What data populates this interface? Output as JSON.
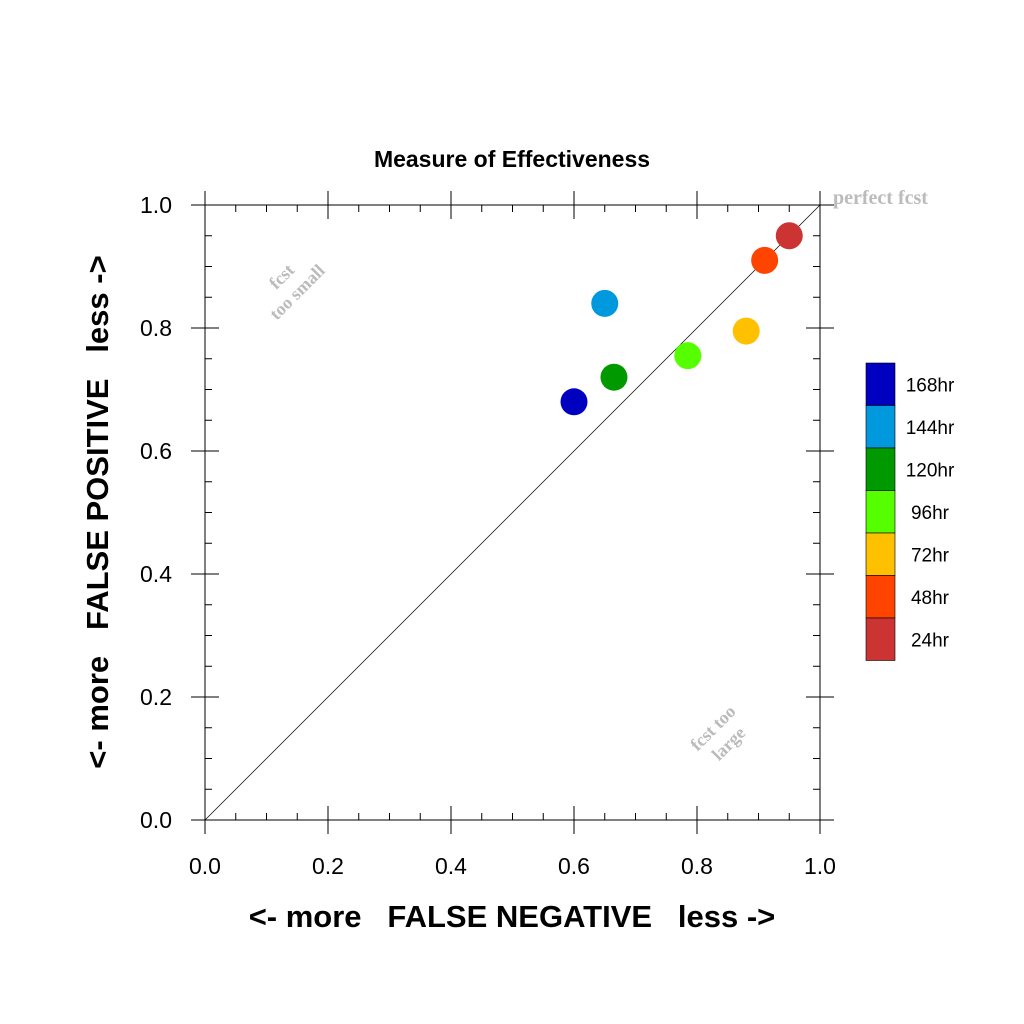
{
  "chart_data": {
    "type": "scatter",
    "title": "Measure of Effectiveness",
    "xlabel": "<- more   FALSE NEGATIVE   less ->",
    "ylabel": "<- more   FALSE POSITIVE   less ->",
    "xlim": [
      0.0,
      1.0
    ],
    "ylim": [
      0.0,
      1.0
    ],
    "xticks": [
      0.0,
      0.2,
      0.4,
      0.6,
      0.8,
      1.0
    ],
    "yticks": [
      0.0,
      0.2,
      0.4,
      0.6,
      0.8,
      1.0
    ],
    "tick_labels": [
      "0.0",
      "0.2",
      "0.4",
      "0.6",
      "0.8",
      "1.0"
    ],
    "grid": false,
    "diagonal_line": true,
    "annotations": {
      "perfect": "perfect fcst",
      "too_small_line1": "fcst",
      "too_small_line2": "too small",
      "too_large_line1": "fcst too",
      "too_large_line2": "large"
    },
    "legend_position": "right",
    "series": [
      {
        "name": "168hr",
        "x": 0.6,
        "y": 0.68,
        "color": "#0000c0"
      },
      {
        "name": "144hr",
        "x": 0.65,
        "y": 0.84,
        "color": "#0099dd"
      },
      {
        "name": "120hr",
        "x": 0.665,
        "y": 0.72,
        "color": "#009900"
      },
      {
        "name": "96hr",
        "x": 0.785,
        "y": 0.755,
        "color": "#55ff00"
      },
      {
        "name": "72hr",
        "x": 0.88,
        "y": 0.795,
        "color": "#ffc000"
      },
      {
        "name": "48hr",
        "x": 0.91,
        "y": 0.91,
        "color": "#ff4400"
      },
      {
        "name": "24hr",
        "x": 0.95,
        "y": 0.95,
        "color": "#cc3333"
      }
    ]
  }
}
